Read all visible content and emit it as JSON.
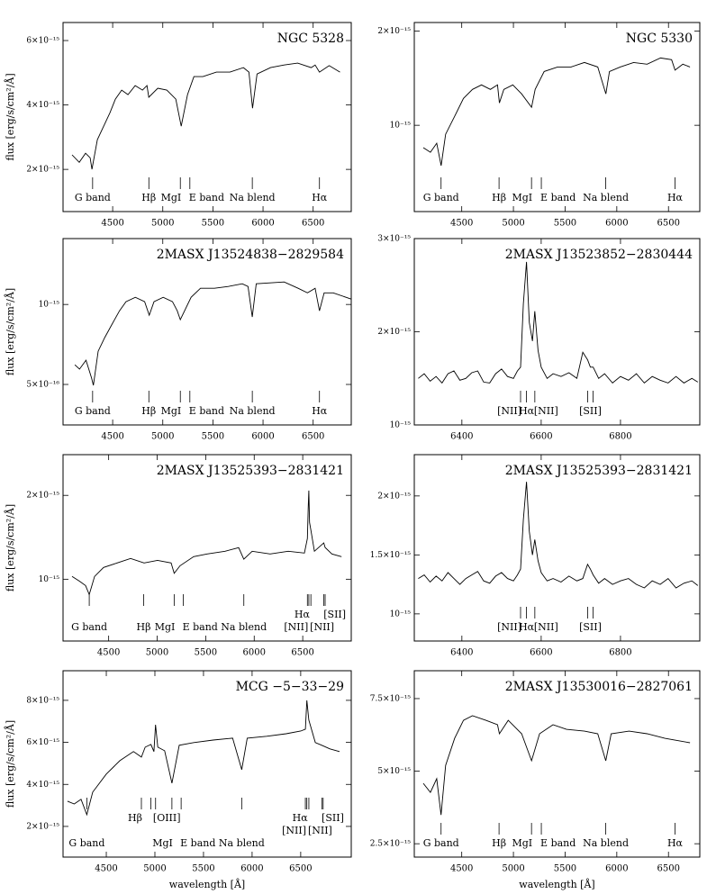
{
  "chart_data": [
    {
      "type": "line",
      "title": "NGC 5328",
      "ylabel": "flux [erg/s/cm²/Å]",
      "color": "#000000",
      "xlim": [
        4005,
        6880
      ],
      "ylim": [
        6.9e-16,
        6.56e-15
      ],
      "log_y": false,
      "xticks": [
        4500,
        5000,
        5500,
        6000,
        6500
      ],
      "yticks": [
        {
          "value": 2e-15,
          "label": "2×10⁻¹⁵"
        },
        {
          "value": 4e-15,
          "label": "4×10⁻¹⁵"
        },
        {
          "value": 6e-15,
          "label": "6×10⁻¹⁵"
        }
      ],
      "x": [
        4095,
        4167,
        4230,
        4275,
        4293,
        4347,
        4410,
        4473,
        4527,
        4590,
        4653,
        4725,
        4797,
        4842,
        4860,
        4950,
        5040,
        5130,
        5184,
        5247,
        5310,
        5400,
        5535,
        5670,
        5805,
        5859,
        5895,
        5940,
        6075,
        6210,
        6345,
        6480,
        6520,
        6563,
        6660,
        6768
      ],
      "values": [
        2.45e-15,
        2.22e-15,
        2.5e-15,
        2.36e-15,
        2e-15,
        2.92e-15,
        3.34e-15,
        3.76e-15,
        4.18e-15,
        4.46e-15,
        4.32e-15,
        4.6e-15,
        4.46e-15,
        4.6e-15,
        4.24e-15,
        4.52e-15,
        4.46e-15,
        4.18e-15,
        3.34e-15,
        4.32e-15,
        4.88e-15,
        4.88e-15,
        5.02e-15,
        5.02e-15,
        5.16e-15,
        5.02e-15,
        3.9e-15,
        4.96e-15,
        5.16e-15,
        5.24e-15,
        5.3e-15,
        5.16e-15,
        5.24e-15,
        5.02e-15,
        5.22e-15,
        5.02e-15
      ],
      "lines": [
        4300,
        4861,
        5175,
        5270,
        5893,
        6563
      ],
      "label_rows": [
        [
          {
            "text": "G band",
            "x": 4300
          },
          {
            "text": "Hβ",
            "x": 4861
          },
          {
            "text": "MgI",
            "x": 5175
          },
          {
            "text": "E band",
            "x": 5270
          },
          {
            "text": "Na blend",
            "x": 5893
          },
          {
            "text": "Hα",
            "x": 6563
          }
        ]
      ]
    },
    {
      "type": "line",
      "title": "NGC 5330",
      "color": "#000000",
      "xlim": [
        4041,
        6803
      ],
      "ylim": [
        5.3e-16,
        2.13e-15
      ],
      "log_y": true,
      "xticks": [
        4500,
        5000,
        5500,
        6000,
        6500
      ],
      "yticks": [
        {
          "value": 1e-15,
          "label": "10⁻¹⁵"
        },
        {
          "value": 2e-15,
          "label": "2×10⁻¹⁵"
        }
      ],
      "x": [
        4128,
        4197,
        4258,
        4301,
        4344,
        4431,
        4517,
        4604,
        4691,
        4777,
        4846,
        4864,
        4907,
        4994,
        5080,
        5175,
        5210,
        5297,
        5427,
        5557,
        5687,
        5816,
        5894,
        5929,
        6033,
        6163,
        6293,
        6423,
        6530,
        6563,
        6639,
        6708
      ],
      "values": [
        8.48e-16,
        8.2e-16,
        8.76e-16,
        7.43e-16,
        9.36e-16,
        1.068e-15,
        1.219e-15,
        1.302e-15,
        1.346e-15,
        1.302e-15,
        1.346e-15,
        1.179e-15,
        1.302e-15,
        1.346e-15,
        1.26e-15,
        1.141e-15,
        1.302e-15,
        1.486e-15,
        1.536e-15,
        1.536e-15,
        1.587e-15,
        1.536e-15,
        1.26e-15,
        1.486e-15,
        1.536e-15,
        1.587e-15,
        1.567e-15,
        1.641e-15,
        1.62e-15,
        1.5e-15,
        1.567e-15,
        1.536e-15
      ],
      "lines": [
        4300,
        4861,
        5175,
        5270,
        5893,
        6563
      ],
      "label_rows": [
        [
          {
            "text": "G band",
            "x": 4300
          },
          {
            "text": "Hβ",
            "x": 4861
          },
          {
            "text": "MgI",
            "x": 5175
          },
          {
            "text": "E band",
            "x": 5270
          },
          {
            "text": "Na blend",
            "x": 5893
          },
          {
            "text": "Hα",
            "x": 6563
          }
        ]
      ]
    },
    {
      "type": "line",
      "title": "2MASX J13524838−2829584",
      "ylabel": "flux [erg/s/cm²/Å]",
      "color": "#000000",
      "xlim": [
        4005,
        6880
      ],
      "ylim": [
        3.52e-16,
        1.77e-15
      ],
      "log_y": true,
      "xticks": [
        4500,
        5000,
        5500,
        6000,
        6500
      ],
      "yticks": [
        {
          "value": 5e-16,
          "label": "5×10⁻¹⁶"
        },
        {
          "value": 1e-15,
          "label": "10⁻¹⁵"
        }
      ],
      "x": [
        4123,
        4169,
        4234,
        4290,
        4308,
        4355,
        4420,
        4494,
        4568,
        4633,
        4726,
        4819,
        4865,
        4912,
        5004,
        5097,
        5144,
        5175,
        5283,
        5376,
        5515,
        5654,
        5793,
        5850,
        5893,
        5932,
        6211,
        6350,
        6443,
        6520,
        6563,
        6610,
        6700,
        6879
      ],
      "values": [
        5.93e-16,
        5.71e-16,
        6.17e-16,
        5.28e-16,
        4.96e-16,
        6.67e-16,
        7.5e-16,
        8.43e-16,
        9.47e-16,
        1.024e-15,
        1.064e-15,
        1.024e-15,
        9.11e-16,
        1.024e-15,
        1.064e-15,
        1.024e-15,
        9.47e-16,
        8.76e-16,
        1.064e-15,
        1.151e-15,
        1.151e-15,
        1.169e-15,
        1.196e-15,
        1.169e-15,
        8.97e-16,
        1.196e-15,
        1.215e-15,
        1.151e-15,
        1.106e-15,
        1.151e-15,
        9.47e-16,
        1.106e-15,
        1.106e-15,
        1.048e-15
      ],
      "lines": [
        4300,
        4861,
        5175,
        5270,
        5893,
        6563
      ],
      "label_rows": [
        [
          {
            "text": "G band",
            "x": 4300
          },
          {
            "text": "Hβ",
            "x": 4861
          },
          {
            "text": "MgI",
            "x": 5175
          },
          {
            "text": "E band",
            "x": 5270
          },
          {
            "text": "Na blend",
            "x": 5893
          },
          {
            "text": "Hα",
            "x": 6563
          }
        ]
      ]
    },
    {
      "type": "line",
      "title": "2MASX J13523852−2830444",
      "color": "#000000",
      "xlim": [
        6280,
        7000
      ],
      "ylim": [
        1e-15,
        3e-15
      ],
      "log_y": false,
      "xticks": [
        6400,
        6600,
        6800
      ],
      "yticks": [
        {
          "value": 1e-15,
          "label": "10⁻¹⁵"
        },
        {
          "value": 2e-15,
          "label": "2×10⁻¹⁵"
        },
        {
          "value": 3e-15,
          "label": "3×10⁻¹⁵"
        }
      ],
      "x": [
        6290,
        6305,
        6320,
        6335,
        6350,
        6365,
        6380,
        6395,
        6410,
        6425,
        6440,
        6455,
        6470,
        6485,
        6500,
        6515,
        6530,
        6540,
        6548,
        6555,
        6563,
        6570,
        6578,
        6584,
        6592,
        6600,
        6615,
        6630,
        6650,
        6670,
        6690,
        6705,
        6717,
        6724,
        6731,
        6745,
        6760,
        6780,
        6800,
        6820,
        6840,
        6860,
        6880,
        6900,
        6920,
        6940,
        6960,
        6980,
        6995
      ],
      "values": [
        1.5e-15,
        1.55e-15,
        1.47e-15,
        1.52e-15,
        1.45e-15,
        1.55e-15,
        1.58e-15,
        1.48e-15,
        1.5e-15,
        1.56e-15,
        1.58e-15,
        1.46e-15,
        1.45e-15,
        1.55e-15,
        1.6e-15,
        1.52e-15,
        1.5e-15,
        1.58e-15,
        1.62e-15,
        2.3e-15,
        2.75e-15,
        2.1e-15,
        1.9e-15,
        2.22e-15,
        1.8e-15,
        1.62e-15,
        1.5e-15,
        1.55e-15,
        1.52e-15,
        1.56e-15,
        1.5e-15,
        1.78e-15,
        1.7e-15,
        1.62e-15,
        1.62e-15,
        1.5e-15,
        1.55e-15,
        1.45e-15,
        1.52e-15,
        1.48e-15,
        1.55e-15,
        1.45e-15,
        1.52e-15,
        1.48e-15,
        1.45e-15,
        1.52e-15,
        1.45e-15,
        1.5e-15,
        1.46e-15
      ],
      "lines": [
        6548,
        6563,
        6584,
        6717,
        6731
      ],
      "label_rows": [
        [
          {
            "text": "[NII]",
            "x": 6548
          },
          {
            "text": "Hα",
            "x": 6563
          },
          {
            "text": "[NII]",
            "x": 6584
          },
          {
            "text": "[SII]",
            "x": 6724
          }
        ]
      ]
    },
    {
      "type": "line",
      "title": "2MASX J13525393−2831421",
      "ylabel": "flux [erg/s/cm²/Å]",
      "color": "#000000",
      "xlim": [
        4030,
        7000
      ],
      "ylim": [
        6e-16,
        2.8e-15
      ],
      "log_y": true,
      "xticks": [
        4500,
        5000,
        5500,
        6000,
        6500
      ],
      "yticks": [
        {
          "value": 1e-15,
          "label": "10⁻¹⁵"
        },
        {
          "value": 2e-15,
          "label": "2×10⁻¹⁵"
        }
      ],
      "x": [
        4123,
        4197,
        4262,
        4300,
        4355,
        4448,
        4587,
        4726,
        4865,
        5004,
        5144,
        5175,
        5236,
        5376,
        5515,
        5700,
        5840,
        5893,
        5979,
        6164,
        6350,
        6517,
        6548,
        6556,
        6563,
        6570,
        6584,
        6620,
        6717,
        6731,
        6800,
        6900
      ],
      "values": [
        1.023e-15,
        9.85e-16,
        9.49e-16,
        8.81e-16,
        1.023e-15,
        1.102e-15,
        1.144e-15,
        1.187e-15,
        1.144e-15,
        1.169e-15,
        1.144e-15,
        1.05e-15,
        1.118e-15,
        1.205e-15,
        1.232e-15,
        1.26e-15,
        1.298e-15,
        1.18e-15,
        1.26e-15,
        1.232e-15,
        1.26e-15,
        1.241e-15,
        1.4e-15,
        1.8e-15,
        2.08e-15,
        1.6e-15,
        1.5e-15,
        1.26e-15,
        1.35e-15,
        1.3e-15,
        1.232e-15,
        1.205e-15
      ],
      "lines": [
        4300,
        4861,
        5175,
        5270,
        5893,
        6548,
        6563,
        6584,
        6717,
        6731
      ],
      "label_rows": [
        [
          {
            "text": "Hα",
            "x": 6563
          },
          {
            "text": "[SII]",
            "x": 6724
          }
        ],
        [
          {
            "text": "G band",
            "x": 4300
          },
          {
            "text": "Hβ",
            "x": 4861
          },
          {
            "text": "MgI",
            "x": 5175
          },
          {
            "text": "E band",
            "x": 5270
          },
          {
            "text": "Na blend",
            "x": 5893
          },
          {
            "text": "[NII]",
            "x": 6548
          },
          {
            "text": "[NII]",
            "x": 6584
          }
        ]
      ]
    },
    {
      "type": "line",
      "title": "2MASX J13525393−2831421",
      "color": "#000000",
      "xlim": [
        6280,
        7000
      ],
      "ylim": [
        7.7e-16,
        2.35e-15
      ],
      "log_y": false,
      "xticks": [
        6400,
        6600,
        6800
      ],
      "yticks": [
        {
          "value": 1e-15,
          "label": "10⁻¹⁵"
        },
        {
          "value": 1.5e-15,
          "label": "1.5×10⁻¹⁵"
        },
        {
          "value": 2e-15,
          "label": "2×10⁻¹⁵"
        }
      ],
      "x": [
        6290,
        6305,
        6320,
        6335,
        6350,
        6365,
        6380,
        6395,
        6410,
        6425,
        6440,
        6455,
        6470,
        6485,
        6500,
        6515,
        6530,
        6540,
        6548,
        6555,
        6563,
        6570,
        6578,
        6584,
        6592,
        6600,
        6615,
        6630,
        6650,
        6670,
        6690,
        6705,
        6717,
        6724,
        6731,
        6745,
        6760,
        6780,
        6800,
        6820,
        6840,
        6860,
        6880,
        6900,
        6920,
        6940,
        6960,
        6980,
        6995
      ],
      "values": [
        1.3e-15,
        1.33e-15,
        1.27e-15,
        1.32e-15,
        1.28e-15,
        1.35e-15,
        1.3e-15,
        1.25e-15,
        1.3e-15,
        1.33e-15,
        1.36e-15,
        1.28e-15,
        1.26e-15,
        1.32e-15,
        1.35e-15,
        1.3e-15,
        1.28e-15,
        1.33e-15,
        1.38e-15,
        1.8e-15,
        2.12e-15,
        1.7e-15,
        1.5e-15,
        1.63e-15,
        1.45e-15,
        1.35e-15,
        1.28e-15,
        1.3e-15,
        1.27e-15,
        1.32e-15,
        1.28e-15,
        1.3e-15,
        1.42e-15,
        1.38e-15,
        1.33e-15,
        1.26e-15,
        1.3e-15,
        1.25e-15,
        1.28e-15,
        1.3e-15,
        1.25e-15,
        1.22e-15,
        1.28e-15,
        1.25e-15,
        1.3e-15,
        1.22e-15,
        1.26e-15,
        1.28e-15,
        1.24e-15
      ],
      "lines": [
        6548,
        6563,
        6584,
        6717,
        6731
      ],
      "label_rows": [
        [
          {
            "text": "[NII]",
            "x": 6548
          },
          {
            "text": "Hα",
            "x": 6563
          },
          {
            "text": "[NII]",
            "x": 6584
          },
          {
            "text": "[SII]",
            "x": 6724
          }
        ]
      ]
    },
    {
      "type": "line",
      "title": "MCG −5−33−29",
      "ylabel": "flux [erg/s/cm²/Å]",
      "xlabel": "wavelength [Å]",
      "color": "#000000",
      "xlim": [
        4055,
        7020
      ],
      "ylim": [
        5.4e-16,
        9.41e-15
      ],
      "log_y": false,
      "xticks": [
        4500,
        5000,
        5500,
        6000,
        6500
      ],
      "yticks": [
        {
          "value": 2e-15,
          "label": "2×10⁻¹⁵"
        },
        {
          "value": 4e-15,
          "label": "4×10⁻¹⁵"
        },
        {
          "value": 6e-15,
          "label": "6×10⁻¹⁵"
        },
        {
          "value": 8e-15,
          "label": "8×10⁻¹⁵"
        }
      ],
      "x": [
        4100,
        4170,
        4240,
        4300,
        4360,
        4500,
        4640,
        4780,
        4861,
        4900,
        4959,
        4990,
        5007,
        5030,
        5100,
        5175,
        5250,
        5400,
        5600,
        5800,
        5893,
        5950,
        6150,
        6350,
        6500,
        6548,
        6563,
        6584,
        6650,
        6717,
        6800,
        6900
      ],
      "values": [
        3.2e-15,
        3.07e-15,
        3.29e-15,
        2.56e-15,
        3.63e-15,
        4.49e-15,
        5.13e-15,
        5.56e-15,
        5.3e-15,
        5.77e-15,
        5.9e-15,
        5.56e-15,
        6.84e-15,
        5.77e-15,
        5.6e-15,
        4.06e-15,
        5.86e-15,
        5.99e-15,
        6.11e-15,
        6.2e-15,
        4.7e-15,
        6.2e-15,
        6.29e-15,
        6.41e-15,
        6.54e-15,
        6.63e-15,
        8e-15,
        7.06e-15,
        5.99e-15,
        5.86e-15,
        5.69e-15,
        5.56e-15
      ],
      "lines": [
        4300,
        4861,
        4959,
        5007,
        5175,
        5270,
        5893,
        6548,
        6563,
        6584,
        6717,
        6731
      ],
      "label_rows": [
        [
          {
            "text": "Hβ",
            "x": 4861
          },
          {
            "text": "[OIII]",
            "x": 4990
          },
          {
            "text": "Hα",
            "x": 6563
          },
          {
            "text": "[SII]",
            "x": 6724
          }
        ],
        [
          {
            "text": "[NII]",
            "x": 6548
          },
          {
            "text": "[NII]",
            "x": 6584
          }
        ],
        [
          {
            "text": "G band",
            "x": 4300
          },
          {
            "text": "MgI",
            "x": 5175
          },
          {
            "text": "E band",
            "x": 5270
          },
          {
            "text": "Na blend",
            "x": 5893
          }
        ]
      ]
    },
    {
      "type": "line",
      "title": "2MASX J13530016−2827061",
      "xlabel": "wavelength [Å]",
      "color": "#000000",
      "xlim": [
        4041,
        6803
      ],
      "ylim": [
        2.04e-15,
        8.46e-15
      ],
      "log_y": false,
      "xticks": [
        4500,
        5000,
        5500,
        6000,
        6500
      ],
      "yticks": [
        {
          "value": 2.5e-15,
          "label": "2.5×10⁻¹⁵"
        },
        {
          "value": 5e-15,
          "label": "5×10⁻¹⁵"
        },
        {
          "value": 7.5e-15,
          "label": "7.5×10⁻¹⁵"
        }
      ],
      "x": [
        4128,
        4197,
        4258,
        4300,
        4344,
        4431,
        4517,
        4604,
        4734,
        4846,
        4864,
        4950,
        5080,
        5175,
        5253,
        5383,
        5513,
        5687,
        5816,
        5893,
        5946,
        6119,
        6293,
        6466,
        6563,
        6708
      ],
      "values": [
        4.58e-15,
        4.27e-15,
        4.74e-15,
        3.49e-15,
        5.2e-15,
        6.13e-15,
        6.75e-15,
        6.91e-15,
        6.75e-15,
        6.6e-15,
        6.29e-15,
        6.75e-15,
        6.29e-15,
        5.36e-15,
        6.29e-15,
        6.6e-15,
        6.44e-15,
        6.38e-15,
        6.29e-15,
        5.36e-15,
        6.29e-15,
        6.38e-15,
        6.29e-15,
        6.13e-15,
        6.07e-15,
        5.98e-15
      ],
      "lines": [
        4300,
        4861,
        5175,
        5270,
        5893,
        6563
      ],
      "label_rows": [
        [
          {
            "text": "G band",
            "x": 4300
          },
          {
            "text": "Hβ",
            "x": 4861
          },
          {
            "text": "MgI",
            "x": 5175
          },
          {
            "text": "E band",
            "x": 5270
          },
          {
            "text": "Na blend",
            "x": 5893
          },
          {
            "text": "Hα",
            "x": 6563
          }
        ]
      ]
    }
  ]
}
